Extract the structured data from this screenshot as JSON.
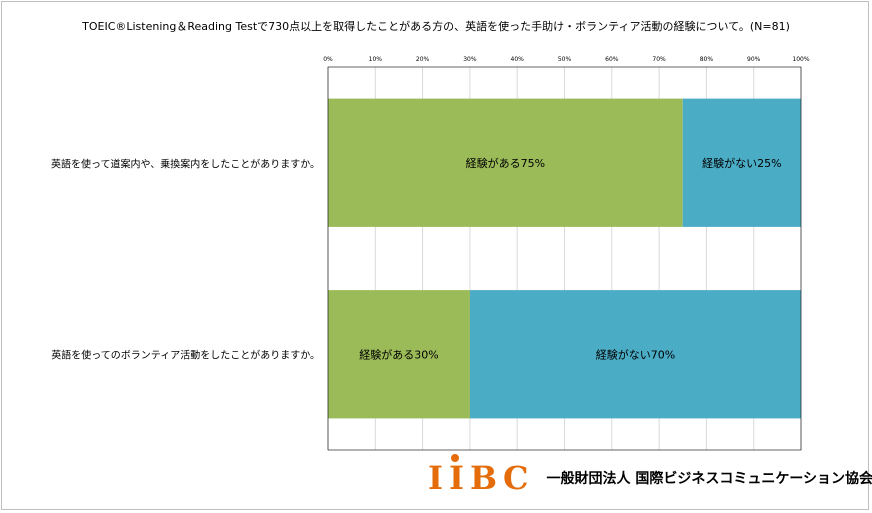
{
  "chart_data": {
    "type": "bar",
    "orientation": "horizontal",
    "stacked": true,
    "title": "TOEIC®Listening＆Reading Testで730点以上を取得したことがある方の、英語を使った手助け・ボランティア活動の経験について。(N=81)",
    "categories": [
      "英語を使って道案内や、乗換案内をしたことがありますか。",
      "英語を使ってのボランティア活動をしたことがありますか。"
    ],
    "series": [
      {
        "name": "経験がある",
        "color": "#9bbb59",
        "values": [
          75,
          30
        ],
        "labels": [
          "経験がある75%",
          "経験がある30%"
        ]
      },
      {
        "name": "経験がない",
        "color": "#4bacc6",
        "values": [
          25,
          70
        ],
        "labels": [
          "経験がない25%",
          "経験がない70%"
        ]
      }
    ],
    "x_ticks": [
      "0%",
      "10%",
      "20%",
      "30%",
      "40%",
      "50%",
      "60%",
      "70%",
      "80%",
      "90%",
      "100%"
    ],
    "xlim": [
      0,
      100
    ],
    "grid": true,
    "legend": "none"
  },
  "footer": {
    "logo_text": "IIBC",
    "organization": "一般財団法人 国際ビジネスコミュニケーション協会"
  }
}
